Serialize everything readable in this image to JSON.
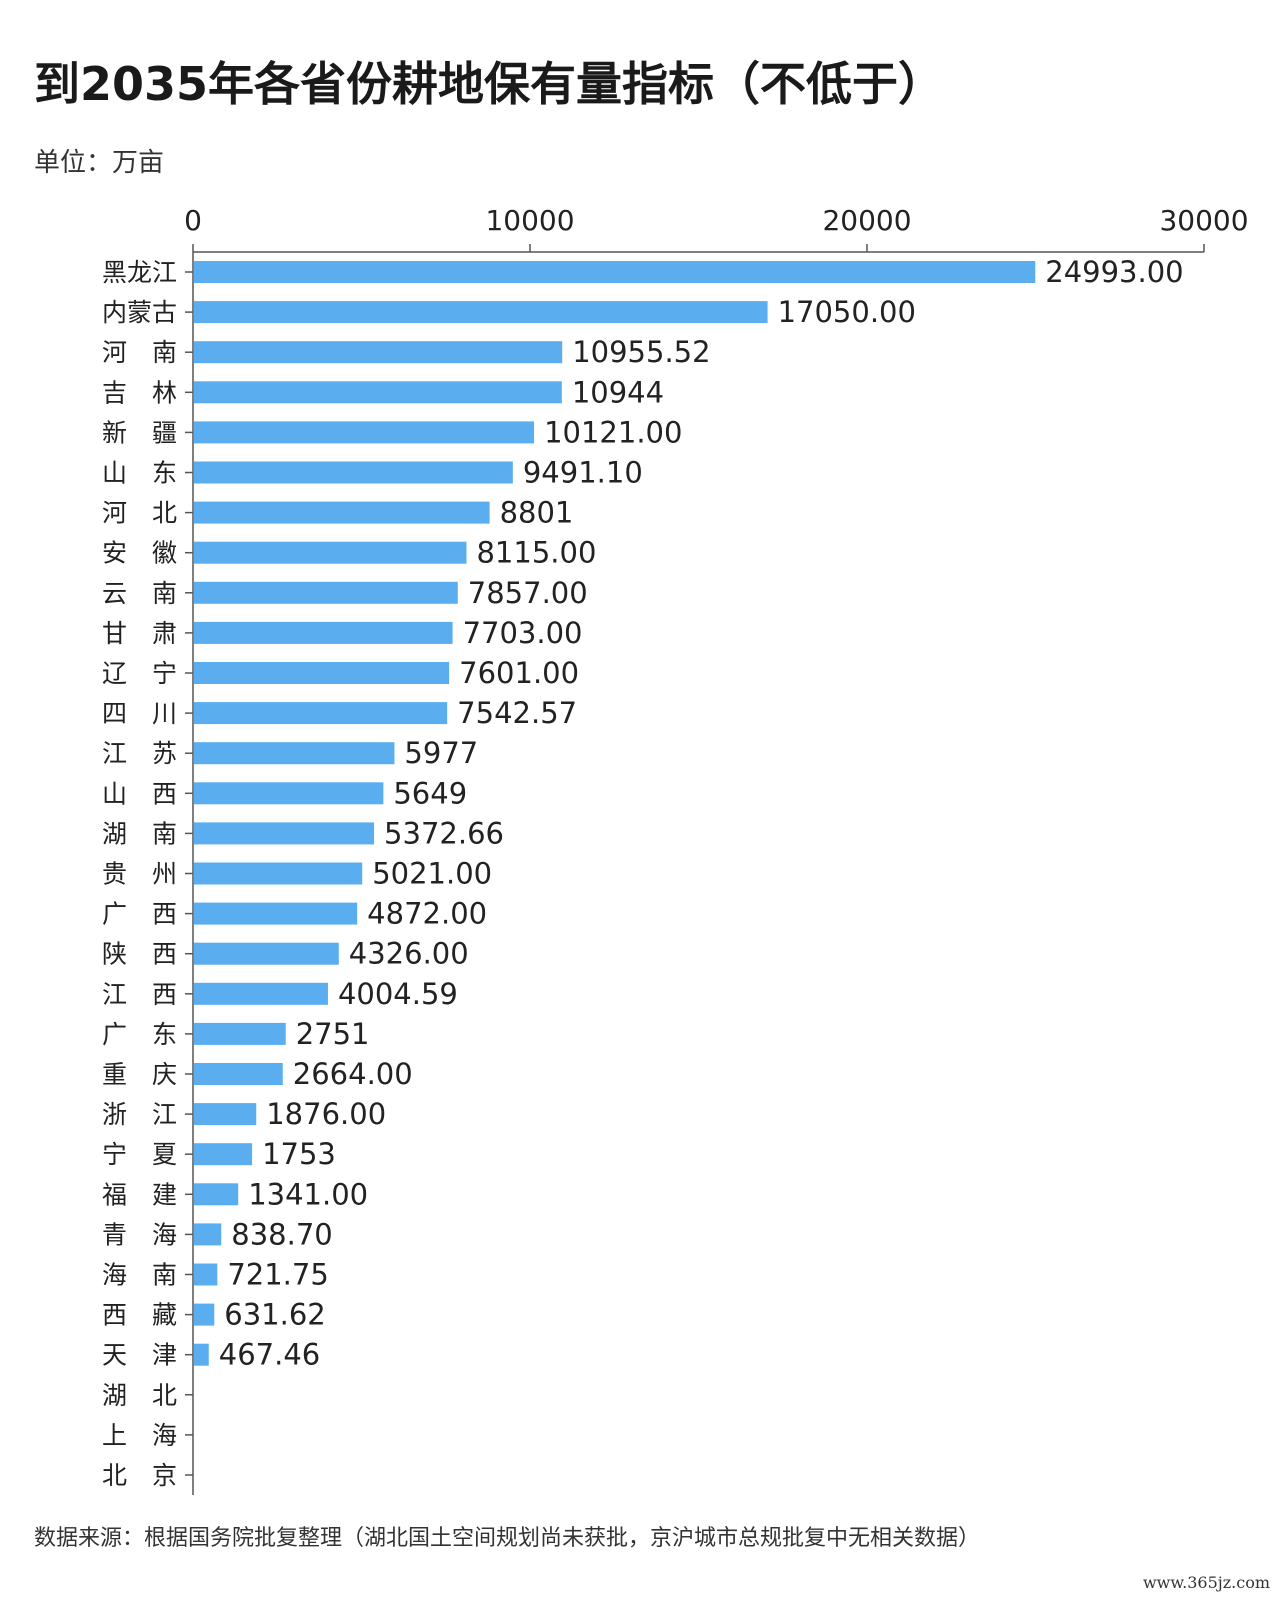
{
  "title": "到2035年各省份耕地保有量指标（不低于）",
  "unit": "单位：万亩",
  "source": "数据来源：根据国务院批复整理（湖北国土空间规划尚未获批，京沪城市总规批复中无相关数据）",
  "watermark": "www.365jz.com",
  "colors": {
    "bar": "#5aaef0",
    "axis": "#555555"
  },
  "chart_data": {
    "type": "bar",
    "orientation": "horizontal",
    "title": "到2035年各省份耕地保有量指标（不低于）",
    "xlabel": "",
    "ylabel": "",
    "xlim": [
      0,
      30000
    ],
    "x_ticks": [
      "0",
      "10000",
      "20000",
      "30000"
    ],
    "grid": false,
    "legend": "none",
    "categories": [
      "黑龙江",
      "内蒙古",
      "河　南",
      "吉　林",
      "新　疆",
      "山　东",
      "河　北",
      "安　徽",
      "云　南",
      "甘　肃",
      "辽　宁",
      "四　川",
      "江　苏",
      "山　西",
      "湖　南",
      "贵　州",
      "广　西",
      "陕　西",
      "江　西",
      "广　东",
      "重　庆",
      "浙　江",
      "宁　夏",
      "福　建",
      "青　海",
      "海　南",
      "西　藏",
      "天　津",
      "湖　北",
      "上　海",
      "北　京"
    ],
    "values": [
      24993.0,
      17050.0,
      10955.52,
      10944,
      10121.0,
      9491.1,
      8801,
      8115.0,
      7857.0,
      7703.0,
      7601.0,
      7542.57,
      5977,
      5649,
      5372.66,
      5021.0,
      4872.0,
      4326.0,
      4004.59,
      2751,
      2664.0,
      1876.0,
      1753,
      1341.0,
      838.7,
      721.75,
      631.62,
      467.46,
      null,
      null,
      null
    ],
    "value_labels": [
      "24993.00",
      "17050.00",
      "10955.52",
      "10944",
      "10121.00",
      "9491.10",
      "8801",
      "8115.00",
      "7857.00",
      "7703.00",
      "7601.00",
      "7542.57",
      "5977",
      "5649",
      "5372.66",
      "5021.00",
      "4872.00",
      "4326.00",
      "4004.59",
      "2751",
      "2664.00",
      "1876.00",
      "1753",
      "1341.00",
      "838.70",
      "721.75",
      "631.62",
      "467.46",
      "",
      "",
      ""
    ]
  }
}
